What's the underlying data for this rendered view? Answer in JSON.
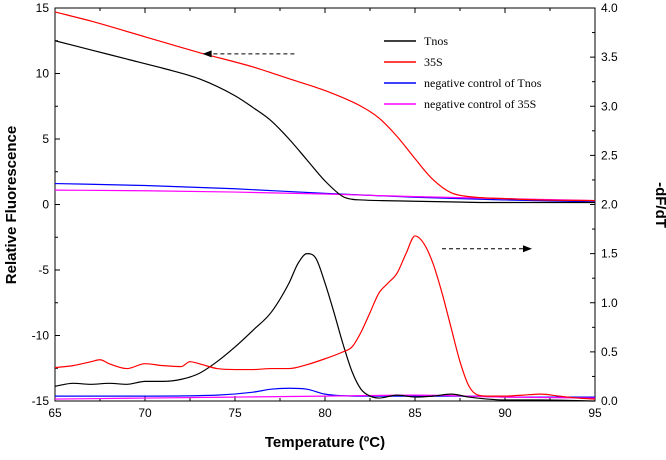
{
  "chart_data": {
    "type": "line",
    "xlabel": "Temperature (ºC)",
    "ylabel_left": "Relative Fluorescence",
    "ylabel_right": "-dF/dT",
    "xlim": [
      65,
      95
    ],
    "ylim_left": [
      -15,
      15
    ],
    "ylim_right": [
      0,
      4
    ],
    "x_ticks": [
      "65",
      "70",
      "75",
      "80",
      "85",
      "90",
      "95"
    ],
    "y_left_ticks": [
      "15",
      "10",
      "5",
      "0",
      "-5",
      "-10",
      "-15"
    ],
    "y_right_ticks": [
      "4.0",
      "3.5",
      "3.0",
      "2.5",
      "2.0",
      "1.5",
      "1.0",
      "0.5",
      "0.0"
    ],
    "grid": false,
    "legend_position": "top-right",
    "legend": [
      {
        "name": "Tnos",
        "color": "#000000"
      },
      {
        "name": "35S",
        "color": "#ff0000"
      },
      {
        "name": "negative control of Tnos",
        "color": "#0000ff"
      },
      {
        "name": "negative control of 35S",
        "color": "#ff00ff"
      }
    ],
    "annotations": [
      {
        "type": "dashed-arrow",
        "direction": "left",
        "indicates": "left-axis",
        "x_from": 78.3,
        "x_to": 73.2,
        "y": 11.5
      },
      {
        "type": "dashed-arrow",
        "direction": "right",
        "indicates": "right-axis",
        "x_from": 86.5,
        "x_to": 91.5,
        "y_right": 1.55
      }
    ],
    "series": [
      {
        "name": "Tnos",
        "axis": "left",
        "color": "#000000",
        "x": [
          65,
          67,
          69,
          71,
          73,
          75,
          76,
          77,
          78,
          79,
          80,
          81,
          81.5,
          82,
          83,
          85,
          87,
          89,
          91,
          93,
          95
        ],
        "y": [
          12.5,
          11.8,
          11.1,
          10.4,
          9.6,
          8.3,
          7.4,
          6.4,
          5.0,
          3.4,
          1.8,
          0.6,
          0.4,
          0.35,
          0.3,
          0.25,
          0.2,
          0.15,
          0.15,
          0.15,
          0.15
        ]
      },
      {
        "name": "35S",
        "axis": "left",
        "color": "#ff0000",
        "x": [
          65,
          67,
          70,
          73,
          76,
          78,
          80,
          82,
          83,
          84,
          85,
          86,
          87,
          88,
          90,
          92,
          95
        ],
        "y": [
          14.7,
          14.0,
          12.8,
          11.6,
          10.5,
          9.6,
          8.7,
          7.5,
          6.6,
          5.2,
          3.5,
          1.9,
          0.9,
          0.6,
          0.45,
          0.35,
          0.3
        ]
      },
      {
        "name": "negative control of Tnos",
        "axis": "left",
        "color": "#0000ff",
        "x": [
          65,
          70,
          75,
          80,
          85,
          90,
          95
        ],
        "y": [
          1.6,
          1.45,
          1.2,
          0.85,
          0.55,
          0.35,
          0.2
        ]
      },
      {
        "name": "negative control of 35S",
        "axis": "left",
        "color": "#ff00ff",
        "x": [
          65,
          70,
          75,
          80,
          85,
          90,
          95
        ],
        "y": [
          1.1,
          1.05,
          0.95,
          0.8,
          0.6,
          0.45,
          0.3
        ]
      },
      {
        "name": "Tnos",
        "axis": "right",
        "color": "#000000",
        "x": [
          65,
          66,
          67,
          68,
          69,
          70,
          71,
          72,
          73,
          74,
          75,
          76,
          77,
          78,
          78.5,
          79,
          79.5,
          80,
          80.5,
          81,
          81.5,
          82,
          82.5,
          83,
          84,
          85,
          86,
          87,
          88,
          89,
          90,
          92,
          95
        ],
        "y": [
          0.15,
          0.18,
          0.17,
          0.18,
          0.17,
          0.2,
          0.2,
          0.22,
          0.28,
          0.4,
          0.55,
          0.72,
          0.9,
          1.2,
          1.4,
          1.5,
          1.45,
          1.2,
          0.9,
          0.58,
          0.3,
          0.12,
          0.05,
          0.03,
          0.06,
          0.04,
          0.05,
          0.07,
          0.04,
          0.02,
          0.01,
          0.01,
          0.0
        ]
      },
      {
        "name": "35S",
        "axis": "right",
        "color": "#ff0000",
        "x": [
          65,
          66,
          67,
          67.5,
          68,
          69,
          70,
          71,
          72,
          72.5,
          73,
          74,
          75,
          76,
          77,
          78,
          79,
          80,
          81,
          81.5,
          82,
          82.5,
          83,
          83.5,
          84,
          84.5,
          85,
          85.5,
          86,
          86.5,
          87,
          87.5,
          88,
          88.5,
          89,
          90,
          91,
          92,
          93,
          94,
          95
        ],
        "y": [
          0.34,
          0.36,
          0.4,
          0.42,
          0.38,
          0.33,
          0.38,
          0.36,
          0.35,
          0.4,
          0.38,
          0.33,
          0.32,
          0.32,
          0.33,
          0.33,
          0.37,
          0.43,
          0.5,
          0.55,
          0.7,
          0.9,
          1.1,
          1.2,
          1.3,
          1.5,
          1.68,
          1.6,
          1.4,
          1.1,
          0.75,
          0.4,
          0.15,
          0.06,
          0.05,
          0.05,
          0.06,
          0.07,
          0.05,
          0.03,
          0.02
        ]
      },
      {
        "name": "negative control of Tnos",
        "axis": "right",
        "color": "#0000ff",
        "x": [
          65,
          70,
          74,
          76,
          77,
          78,
          79,
          80,
          82,
          84,
          86,
          88,
          90,
          95
        ],
        "y": [
          0.05,
          0.05,
          0.06,
          0.09,
          0.12,
          0.13,
          0.12,
          0.07,
          0.05,
          0.05,
          0.05,
          0.05,
          0.04,
          0.04
        ]
      },
      {
        "name": "negative control of 35S",
        "axis": "right",
        "color": "#ff00ff",
        "x": [
          65,
          70,
          75,
          80,
          85,
          90,
          95
        ],
        "y": [
          0.02,
          0.03,
          0.04,
          0.05,
          0.06,
          0.04,
          0.03
        ]
      }
    ]
  }
}
